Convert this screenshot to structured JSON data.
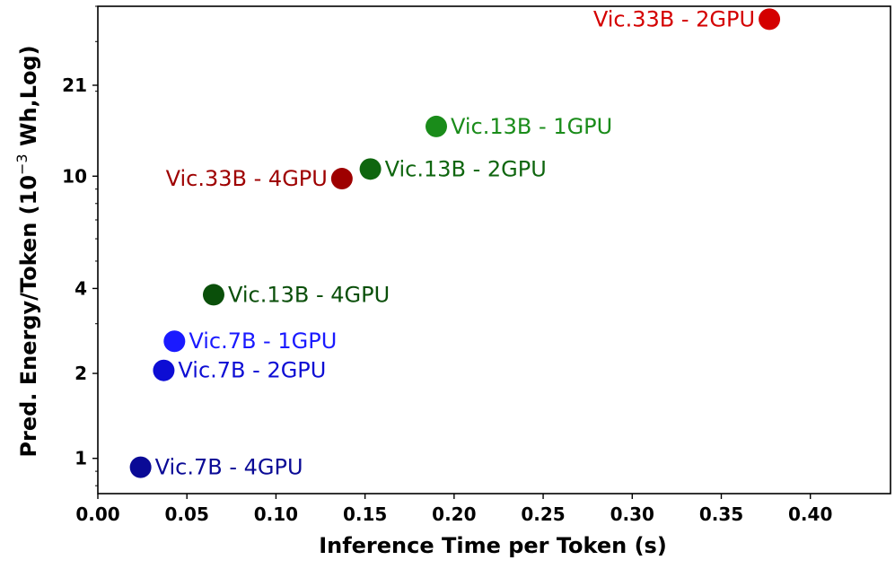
{
  "chart_data": {
    "type": "scatter",
    "title": "",
    "xlabel": "Inference Time per Token (s)",
    "ylabel_prefix": "Pred. Energy/Token (10",
    "ylabel_exponent": "−3",
    "ylabel_suffix": " Wh,Log)",
    "yscale": "log",
    "xlim": [
      0.0,
      0.445
    ],
    "ylim": [
      0.75,
      40
    ],
    "xticks": [
      0.0,
      0.05,
      0.1,
      0.15,
      0.2,
      0.25,
      0.3,
      0.35,
      0.4
    ],
    "xtick_labels": [
      "0.00",
      "0.05",
      "0.10",
      "0.15",
      "0.20",
      "0.25",
      "0.30",
      "0.35",
      "0.40"
    ],
    "yticks": [
      1,
      2,
      4,
      10,
      21
    ],
    "ytick_labels": [
      "1",
      "2",
      "4",
      "10",
      "21"
    ],
    "grid": false,
    "points": [
      {
        "label": "Vic.33B - 2GPU",
        "x": 0.377,
        "y": 36.0,
        "color": "#d40000",
        "label_side": "left"
      },
      {
        "label": "Vic.13B - 1GPU",
        "x": 0.19,
        "y": 15.0,
        "color": "#1a8c1a",
        "label_side": "right"
      },
      {
        "label": "Vic.13B - 2GPU",
        "x": 0.153,
        "y": 10.6,
        "color": "#0f660f",
        "label_side": "right"
      },
      {
        "label": "Vic.33B - 4GPU",
        "x": 0.137,
        "y": 9.8,
        "color": "#9e0000",
        "label_side": "left"
      },
      {
        "label": "Vic.13B - 4GPU",
        "x": 0.065,
        "y": 3.8,
        "color": "#0a4f0a",
        "label_side": "right"
      },
      {
        "label": "Vic.7B - 1GPU",
        "x": 0.043,
        "y": 2.6,
        "color": "#1a1aff",
        "label_side": "right"
      },
      {
        "label": "Vic.7B - 2GPU",
        "x": 0.037,
        "y": 2.05,
        "color": "#0d0dd4",
        "label_side": "right"
      },
      {
        "label": "Vic.7B - 4GPU",
        "x": 0.024,
        "y": 0.93,
        "color": "#0a0a96",
        "label_side": "right"
      }
    ]
  }
}
